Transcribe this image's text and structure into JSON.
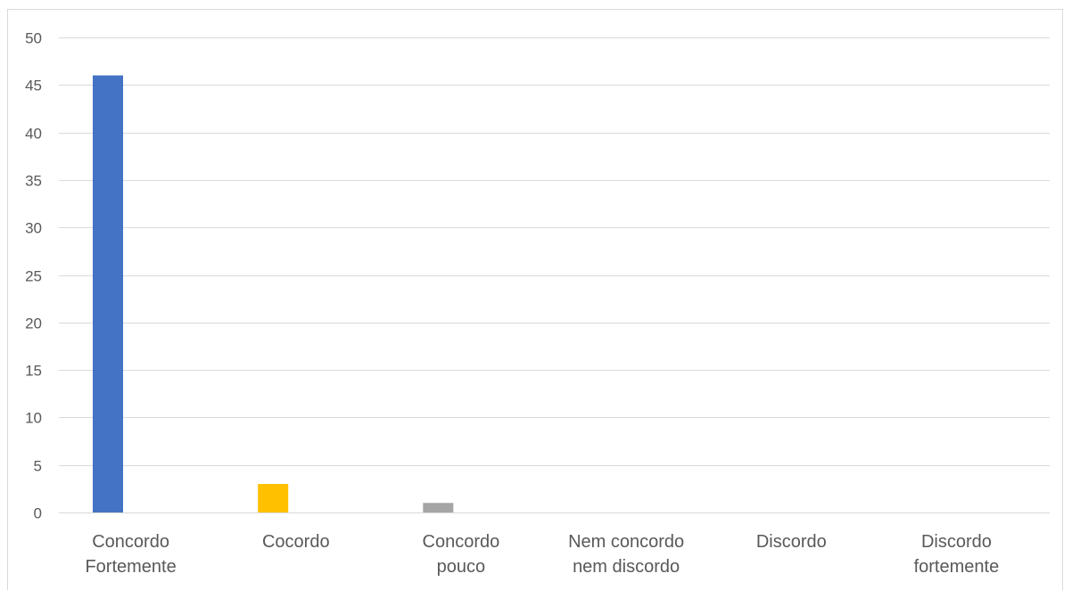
{
  "chart_data": {
    "type": "bar",
    "categories": [
      [
        "Concordo",
        "Fortemente"
      ],
      [
        "Cocordo"
      ],
      [
        "Concordo",
        "pouco"
      ],
      [
        "Nem concordo",
        "nem discordo"
      ],
      [
        "Discordo"
      ],
      [
        "Discordo",
        "fortemente"
      ]
    ],
    "values": [
      46,
      3,
      1,
      0,
      0,
      0
    ],
    "colors": [
      "#4472c4",
      "#ffc000",
      "#a5a5a5",
      "#5b9bd5",
      "#70ad47",
      "#264478"
    ],
    "ylim": [
      0,
      50
    ],
    "yticks": [
      0,
      5,
      10,
      15,
      20,
      25,
      30,
      35,
      40,
      45,
      50
    ],
    "grid": true,
    "gridColor": "#d9d9d9",
    "legend": "none",
    "title": "",
    "xlabel": "",
    "ylabel": ""
  }
}
